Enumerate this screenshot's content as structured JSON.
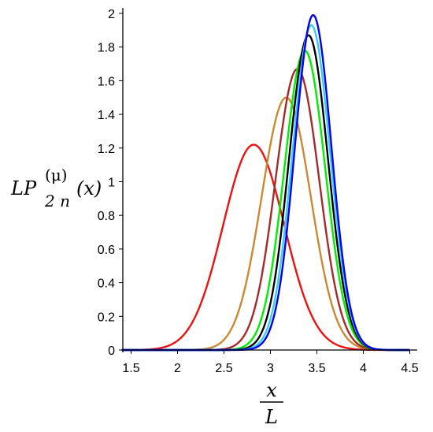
{
  "chart_data": {
    "type": "line",
    "title": "",
    "xlabel": {
      "numerator": "x",
      "denominator": "L"
    },
    "ylabel": {
      "main": "LP",
      "superscript": "(μ)",
      "subscript": "2 n",
      "arg": "(x)"
    },
    "xlim": [
      1.4,
      4.5
    ],
    "ylim": [
      0,
      2
    ],
    "xticks": [
      1.5,
      2,
      2.5,
      3,
      3.5,
      4,
      4.5
    ],
    "yticks": [
      0,
      0.2,
      0.4,
      0.6,
      0.8,
      1,
      1.2,
      1.4,
      1.6,
      1.8,
      2
    ],
    "grid": false,
    "legend": "none",
    "series": [
      {
        "color": "#ee1111",
        "peak_x": 2.82,
        "peak_y": 1.22,
        "sigma": 0.33
      },
      {
        "color": "#cc8833",
        "peak_x": 3.17,
        "peak_y": 1.5,
        "sigma": 0.265
      },
      {
        "color": "#a52a2a",
        "peak_x": 3.29,
        "peak_y": 1.67,
        "sigma": 0.235
      },
      {
        "color": "#00ee00",
        "peak_x": 3.37,
        "peak_y": 1.78,
        "sigma": 0.22
      },
      {
        "color": "#000000",
        "peak_x": 3.41,
        "peak_y": 1.87,
        "sigma": 0.21
      },
      {
        "color": "#33ccff",
        "peak_x": 3.44,
        "peak_y": 1.93,
        "sigma": 0.203
      },
      {
        "color": "#0000ee",
        "peak_x": 3.46,
        "peak_y": 1.99,
        "sigma": 0.197
      }
    ]
  }
}
